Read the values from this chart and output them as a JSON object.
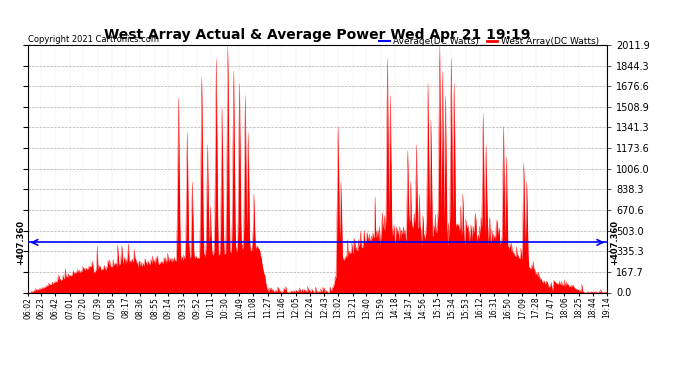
{
  "title": "West Array Actual & Average Power Wed Apr 21 19:19",
  "copyright": "Copyright 2021 Cartronics.com",
  "legend_avg": "Average(DC Watts)",
  "legend_west": "West Array(DC Watts)",
  "avg_value": 407.36,
  "ymax": 2011.9,
  "ymin": 0.0,
  "yticks": [
    0.0,
    167.7,
    335.3,
    503.0,
    670.6,
    838.3,
    1006.0,
    1173.6,
    1341.3,
    1508.9,
    1676.6,
    1844.3,
    2011.9
  ],
  "avg_label": "407.360",
  "avg_color": "#0000ff",
  "fill_color": "#ff0000",
  "line_color": "#ff0000",
  "bg_color": "#ffffff",
  "grid_color": "#999999",
  "title_color": "#000000",
  "copyright_color": "#000000",
  "legend_avg_color": "#0000ff",
  "legend_west_color": "#ff0000",
  "xtick_labels": [
    "06:02",
    "06:23",
    "06:42",
    "07:01",
    "07:20",
    "07:39",
    "07:58",
    "08:17",
    "08:36",
    "08:55",
    "09:14",
    "09:33",
    "09:52",
    "10:11",
    "10:30",
    "10:49",
    "11:08",
    "11:27",
    "11:46",
    "12:05",
    "12:24",
    "12:43",
    "13:02",
    "13:21",
    "13:40",
    "13:59",
    "14:18",
    "14:37",
    "14:56",
    "15:15",
    "15:34",
    "15:53",
    "16:12",
    "16:31",
    "16:50",
    "17:09",
    "17:28",
    "17:47",
    "18:06",
    "18:25",
    "18:44",
    "19:14"
  ],
  "n_points": 800
}
